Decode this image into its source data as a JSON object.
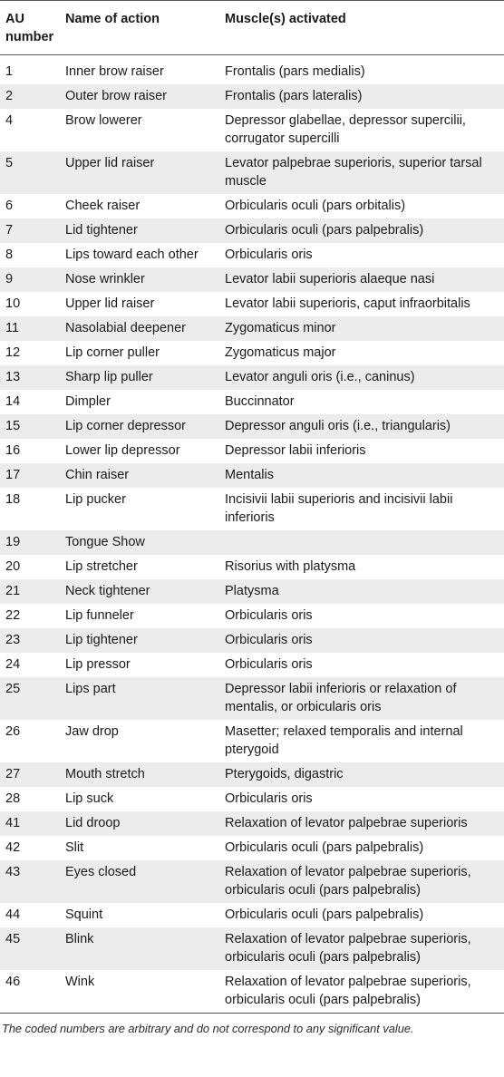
{
  "headers": {
    "au": "AU number",
    "name": "Name of action",
    "muscle": "Muscle(s) activated"
  },
  "rows": [
    {
      "au": "1",
      "name": "Inner brow raiser",
      "muscle": "Frontalis (pars medialis)"
    },
    {
      "au": "2",
      "name": "Outer brow raiser",
      "muscle": "Frontalis (pars lateralis)"
    },
    {
      "au": "4",
      "name": "Brow lowerer",
      "muscle": "Depressor glabellae, depressor supercilii, corrugator supercilli"
    },
    {
      "au": "5",
      "name": "Upper lid raiser",
      "muscle": "Levator palpebrae superioris, superior tarsal muscle"
    },
    {
      "au": "6",
      "name": "Cheek raiser",
      "muscle": "Orbicularis oculi (pars orbitalis)"
    },
    {
      "au": "7",
      "name": "Lid tightener",
      "muscle": "Orbicularis oculi (pars palpebralis)"
    },
    {
      "au": "8",
      "name": "Lips toward each other",
      "muscle": "Orbicularis oris"
    },
    {
      "au": "9",
      "name": "Nose wrinkler",
      "muscle": "Levator labii superioris alaeque nasi"
    },
    {
      "au": "10",
      "name": "Upper lid raiser",
      "muscle": "Levator labii superioris, caput infraorbitalis"
    },
    {
      "au": "11",
      "name": "Nasolabial deepener",
      "muscle": "Zygomaticus minor"
    },
    {
      "au": "12",
      "name": "Lip corner puller",
      "muscle": "Zygomaticus major"
    },
    {
      "au": "13",
      "name": "Sharp lip puller",
      "muscle": "Levator anguli oris (i.e., caninus)"
    },
    {
      "au": "14",
      "name": "Dimpler",
      "muscle": "Buccinnator"
    },
    {
      "au": "15",
      "name": "Lip corner depressor",
      "muscle": "Depressor anguli oris (i.e., triangularis)"
    },
    {
      "au": "16",
      "name": "Lower lip depressor",
      "muscle": "Depressor labii inferioris"
    },
    {
      "au": "17",
      "name": "Chin raiser",
      "muscle": "Mentalis"
    },
    {
      "au": "18",
      "name": "Lip pucker",
      "muscle": "Incisivii labii superioris and incisivii labii inferioris"
    },
    {
      "au": "19",
      "name": "Tongue Show",
      "muscle": ""
    },
    {
      "au": "20",
      "name": "Lip stretcher",
      "muscle": "Risorius with platysma"
    },
    {
      "au": "21",
      "name": "Neck tightener",
      "muscle": "Platysma"
    },
    {
      "au": "22",
      "name": "Lip funneler",
      "muscle": "Orbicularis oris"
    },
    {
      "au": "23",
      "name": "Lip tightener",
      "muscle": "Orbicularis oris"
    },
    {
      "au": "24",
      "name": "Lip pressor",
      "muscle": "Orbicularis oris"
    },
    {
      "au": "25",
      "name": "Lips part",
      "muscle": "Depressor labii inferioris or relaxation of mentalis, or orbicularis oris"
    },
    {
      "au": "26",
      "name": "Jaw drop",
      "muscle": "Masetter; relaxed temporalis and internal pterygoid"
    },
    {
      "au": "27",
      "name": "Mouth stretch",
      "muscle": "Pterygoids, digastric"
    },
    {
      "au": "28",
      "name": "Lip suck",
      "muscle": "Orbicularis oris"
    },
    {
      "au": "41",
      "name": "Lid droop",
      "muscle": "Relaxation of levator palpebrae superioris"
    },
    {
      "au": "42",
      "name": "Slit",
      "muscle": "Orbicularis oculi (pars palpebralis)"
    },
    {
      "au": "43",
      "name": "Eyes closed",
      "muscle": "Relaxation of levator palpebrae superioris, orbicularis oculi (pars palpebralis)"
    },
    {
      "au": "44",
      "name": "Squint",
      "muscle": "Orbicularis oculi (pars palpebralis)"
    },
    {
      "au": "45",
      "name": "Blink",
      "muscle": "Relaxation of levator palpebrae superioris, orbicularis oculi (pars palpebralis)"
    },
    {
      "au": "46",
      "name": "Wink",
      "muscle": "Relaxation of levator palpebrae superioris, orbicularis oculi (pars palpebralis)"
    }
  ],
  "footnote": "The coded numbers are arbitrary and do not correspond to any significant value."
}
